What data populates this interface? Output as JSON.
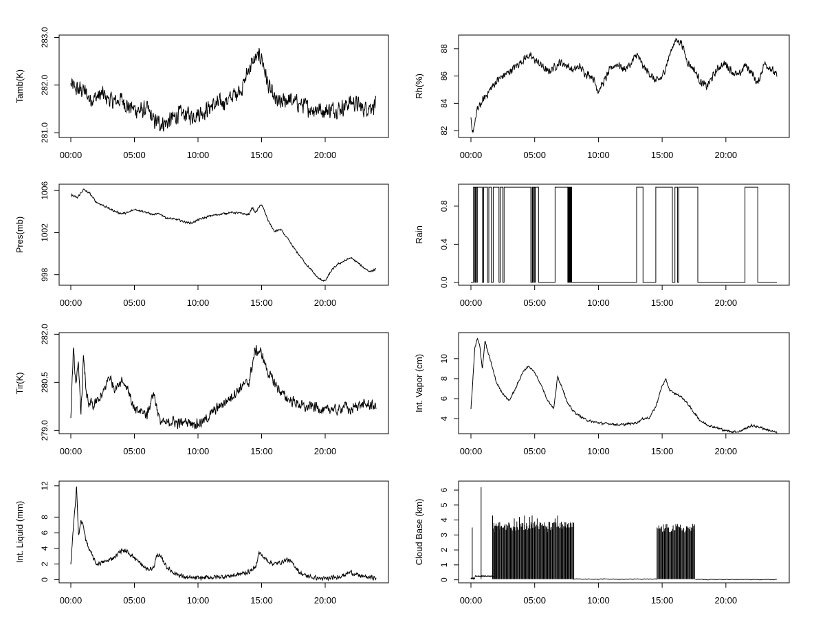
{
  "chart_data": [
    {
      "type": "line",
      "ylabel": "Tamb(K)",
      "xticks": [
        "00:00",
        "05:00",
        "10:00",
        "15:00",
        "20:00"
      ],
      "xlim": [
        0,
        24
      ],
      "ylim": [
        280.9,
        283.05
      ],
      "yticks": [
        "281.0",
        "282.0",
        "283.0"
      ],
      "series": [
        {
          "mode": "noisy",
          "noise": 0.22,
          "x": [
            0,
            0.5,
            1,
            1.5,
            2,
            2.5,
            3,
            3.5,
            4,
            4.5,
            5,
            5.5,
            6,
            6.5,
            7,
            7.5,
            8,
            8.5,
            9,
            9.5,
            10,
            10.5,
            11,
            11.5,
            12,
            12.5,
            13,
            13.5,
            14,
            14.5,
            15,
            15.5,
            16,
            16.5,
            17,
            17.5,
            18,
            18.5,
            19,
            19.5,
            20,
            20.5,
            21,
            21.5,
            22,
            22.5,
            23,
            23.5,
            24
          ],
          "y": [
            282.0,
            281.9,
            281.9,
            281.7,
            281.75,
            281.8,
            281.7,
            281.65,
            281.7,
            281.55,
            281.5,
            281.45,
            281.5,
            281.25,
            281.2,
            281.2,
            281.3,
            281.4,
            281.4,
            281.35,
            281.4,
            281.45,
            281.55,
            281.6,
            281.65,
            281.7,
            281.85,
            281.95,
            282.35,
            282.55,
            282.6,
            282.0,
            281.7,
            281.6,
            281.7,
            281.65,
            281.6,
            281.55,
            281.5,
            281.5,
            281.45,
            281.5,
            281.5,
            281.55,
            281.65,
            281.6,
            281.5,
            281.55,
            281.6
          ]
        }
      ]
    },
    {
      "type": "line",
      "ylabel": "Rh(%)",
      "xticks": [
        "00:00",
        "05:00",
        "10:00",
        "15:00",
        "20:00"
      ],
      "xlim": [
        0,
        24
      ],
      "ylim": [
        81.5,
        89
      ],
      "yticks": [
        "82",
        "84",
        "86",
        "88"
      ],
      "series": [
        {
          "mode": "noisy",
          "noise": 0.35,
          "x": [
            0,
            0.1,
            0.5,
            1,
            1.5,
            2,
            2.5,
            3,
            3.5,
            4,
            4.5,
            5,
            5.5,
            6,
            6.5,
            7,
            7.5,
            8,
            8.5,
            9,
            9.5,
            10,
            10.5,
            11,
            11.5,
            12,
            12.5,
            13,
            13.5,
            14,
            14.5,
            15,
            15.5,
            16,
            16.5,
            17,
            17.5,
            18,
            18.5,
            19,
            19.5,
            20,
            20.5,
            21,
            21.5,
            22,
            22.5,
            23,
            23.5,
            24
          ],
          "y": [
            82.8,
            81.7,
            83.5,
            84.3,
            85.0,
            85.6,
            86.0,
            86.3,
            86.7,
            87.1,
            87.5,
            87.2,
            86.8,
            86.3,
            86.6,
            87.0,
            86.8,
            86.4,
            86.7,
            86.2,
            86.0,
            84.9,
            85.7,
            86.6,
            86.9,
            86.5,
            86.8,
            87.6,
            86.7,
            86.2,
            85.6,
            85.9,
            87.3,
            88.6,
            88.5,
            87.0,
            86.5,
            85.6,
            85.2,
            86.0,
            86.7,
            86.9,
            86.3,
            86.0,
            86.8,
            86.3,
            85.4,
            86.9,
            86.6,
            86.0
          ]
        }
      ]
    },
    {
      "type": "line",
      "ylabel": "Pres(mb)",
      "xticks": [
        "00:00",
        "05:00",
        "10:00",
        "15:00",
        "20:00"
      ],
      "xlim": [
        0,
        24
      ],
      "ylim": [
        997,
        1006.6
      ],
      "yticks": [
        "998",
        "1002",
        "1006"
      ],
      "series": [
        {
          "mode": "noisy",
          "noise": 0.12,
          "x": [
            0,
            0.5,
            1,
            1.5,
            2,
            2.5,
            3,
            3.5,
            4,
            4.5,
            5,
            5.5,
            6,
            6.5,
            7,
            7.5,
            8,
            8.5,
            9,
            9.5,
            10,
            10.5,
            11,
            11.5,
            12,
            12.5,
            13,
            13.5,
            14,
            14.25,
            14.5,
            15,
            15.5,
            16,
            16.5,
            17,
            17.5,
            18,
            18.5,
            19,
            19.5,
            20,
            20.5,
            21,
            21.5,
            22,
            22.5,
            23,
            23.5,
            24
          ],
          "y": [
            1005.6,
            1005.3,
            1006.1,
            1005.7,
            1004.9,
            1004.6,
            1004.3,
            1004.0,
            1003.8,
            1003.9,
            1004.2,
            1004.1,
            1003.9,
            1003.7,
            1003.8,
            1003.4,
            1003.3,
            1003.2,
            1003.0,
            1002.9,
            1003.2,
            1003.4,
            1003.6,
            1003.7,
            1003.8,
            1003.9,
            1003.9,
            1003.8,
            1003.7,
            1004.4,
            1003.9,
            1004.7,
            1003.2,
            1002.1,
            1002.3,
            1001.5,
            1000.6,
            999.8,
            999.0,
            998.3,
            997.6,
            997.4,
            998.4,
            999.0,
            999.3,
            999.6,
            999.2,
            998.7,
            998.3,
            998.5
          ]
        }
      ]
    },
    {
      "type": "line",
      "ylabel": "Rain",
      "xticks": [
        "00:00",
        "05:00",
        "10:00",
        "15:00",
        "20:00"
      ],
      "xlim": [
        0,
        24
      ],
      "ylim": [
        -0.03,
        1.03
      ],
      "yticks": [
        "0.0",
        "0.4",
        "0.8"
      ],
      "series": [
        {
          "mode": "step",
          "intervals": [
            [
              0.2,
              0.3
            ],
            [
              0.35,
              0.45
            ],
            [
              0.5,
              0.9
            ],
            [
              1.0,
              1.3
            ],
            [
              1.4,
              1.6
            ],
            [
              1.75,
              2.2
            ],
            [
              2.3,
              2.5
            ],
            [
              2.6,
              4.7
            ],
            [
              4.8,
              4.85
            ],
            [
              4.9,
              5.0
            ],
            [
              5.05,
              5.3
            ],
            [
              6.6,
              7.6
            ],
            [
              7.65,
              7.7
            ],
            [
              7.75,
              7.8
            ],
            [
              7.85,
              7.9
            ],
            [
              13.0,
              13.5
            ],
            [
              14.5,
              15.8
            ],
            [
              16.0,
              16.2
            ],
            [
              16.3,
              17.8
            ],
            [
              21.5,
              22.5
            ]
          ]
        }
      ]
    },
    {
      "type": "line",
      "ylabel": "Tir(K)",
      "xticks": [
        "00:00",
        "05:00",
        "10:00",
        "15:00",
        "20:00"
      ],
      "xlim": [
        0,
        24
      ],
      "ylim": [
        278.9,
        282.05
      ],
      "yticks": [
        "279.0",
        "280.5",
        "282.0"
      ],
      "series": [
        {
          "mode": "noisy",
          "noise": 0.2,
          "x": [
            0,
            0.2,
            0.4,
            0.6,
            0.8,
            1.0,
            1.2,
            1.4,
            1.6,
            1.8,
            2.0,
            2.5,
            3.0,
            3.5,
            4.0,
            4.5,
            5.0,
            5.5,
            6.0,
            6.5,
            7.0,
            7.5,
            8.0,
            8.5,
            9.0,
            9.5,
            10.0,
            10.5,
            11.0,
            11.5,
            12.0,
            12.5,
            13.0,
            13.5,
            14.0,
            14.5,
            15.0,
            15.5,
            16.0,
            16.5,
            17.0,
            17.5,
            18.0,
            18.5,
            19.0,
            19.5,
            20.0,
            20.5,
            21.0,
            21.5,
            22.0,
            22.5,
            23.0,
            23.5,
            24.0
          ],
          "y": [
            279.5,
            281.5,
            280.5,
            281.0,
            279.6,
            281.3,
            280.3,
            279.7,
            279.9,
            279.7,
            279.9,
            280.1,
            280.7,
            280.3,
            280.6,
            280.3,
            279.6,
            279.6,
            279.5,
            280.2,
            279.3,
            279.2,
            279.3,
            279.2,
            279.3,
            279.25,
            279.2,
            279.3,
            279.5,
            279.7,
            279.85,
            280.0,
            280.2,
            280.4,
            280.5,
            281.5,
            281.4,
            280.8,
            280.5,
            280.2,
            280.0,
            279.9,
            279.8,
            279.7,
            279.75,
            279.7,
            279.6,
            279.7,
            279.6,
            279.8,
            279.6,
            279.8,
            279.8,
            279.8,
            279.75
          ]
        }
      ]
    },
    {
      "type": "line",
      "ylabel": "Int. Vapor (cm)",
      "xticks": [
        "00:00",
        "05:00",
        "10:00",
        "15:00",
        "20:00"
      ],
      "xlim": [
        0,
        24
      ],
      "ylim": [
        2.5,
        12.6
      ],
      "yticks": [
        "4",
        "6",
        "8",
        "10"
      ],
      "series": [
        {
          "mode": "noisy",
          "noise": 0.15,
          "x": [
            0,
            0.3,
            0.5,
            0.7,
            0.9,
            1.1,
            1.3,
            1.6,
            2.0,
            2.5,
            3.0,
            3.5,
            4.0,
            4.5,
            5.0,
            5.5,
            6.0,
            6.5,
            6.8,
            7.2,
            7.6,
            8.0,
            8.5,
            9.0,
            9.5,
            10.0,
            10.5,
            11.0,
            11.5,
            12.0,
            12.5,
            13.0,
            13.5,
            14.0,
            14.5,
            15.0,
            15.3,
            15.6,
            16.0,
            16.5,
            17.0,
            17.5,
            18.0,
            18.5,
            19.0,
            19.5,
            20.0,
            20.5,
            21.0,
            21.5,
            22.0,
            22.5,
            23.0,
            23.5,
            24.0
          ],
          "y": [
            4.9,
            11.0,
            12.0,
            11.2,
            9.0,
            11.8,
            10.8,
            9.5,
            7.6,
            6.5,
            5.8,
            7.0,
            8.5,
            9.3,
            8.6,
            7.4,
            5.9,
            5.0,
            8.2,
            7.0,
            5.5,
            4.8,
            4.3,
            3.9,
            3.7,
            3.6,
            3.5,
            3.5,
            3.4,
            3.4,
            3.5,
            3.6,
            4.0,
            4.1,
            5.2,
            7.3,
            7.9,
            6.8,
            6.5,
            6.2,
            5.5,
            4.6,
            3.8,
            3.4,
            3.2,
            3.0,
            2.8,
            2.7,
            2.7,
            3.0,
            3.3,
            3.2,
            3.0,
            2.8,
            2.6
          ]
        }
      ]
    },
    {
      "type": "line",
      "ylabel": "Int. Liquid (mm)",
      "xticks": [
        "00:00",
        "05:00",
        "10:00",
        "15:00",
        "20:00"
      ],
      "xlim": [
        0,
        24
      ],
      "ylim": [
        -0.4,
        12.6
      ],
      "yticks": [
        "0",
        "2",
        "4",
        "6",
        "8",
        "12"
      ],
      "series": [
        {
          "mode": "noisy",
          "noise": 0.35,
          "x": [
            0,
            0.15,
            0.3,
            0.45,
            0.6,
            0.8,
            1.0,
            1.2,
            1.4,
            1.7,
            2.0,
            2.5,
            3.0,
            3.5,
            4.0,
            4.5,
            5.0,
            5.5,
            6.0,
            6.5,
            6.8,
            7.2,
            7.6,
            8.0,
            8.5,
            9.0,
            9.5,
            10.0,
            11.0,
            12.0,
            13.0,
            14.0,
            14.5,
            14.8,
            15.2,
            15.6,
            16.0,
            16.5,
            17.0,
            17.5,
            18.0,
            18.5,
            19.0,
            19.5,
            20.0,
            20.5,
            21.0,
            21.5,
            22.0,
            22.5,
            23.0,
            23.5,
            24.0
          ],
          "y": [
            2.0,
            5.5,
            8.5,
            12.2,
            5.5,
            7.5,
            6.8,
            5.0,
            4.0,
            3.0,
            2.0,
            2.2,
            2.5,
            3.0,
            3.8,
            3.5,
            2.8,
            2.0,
            1.3,
            1.5,
            3.3,
            2.6,
            1.5,
            1.0,
            0.6,
            0.3,
            0.2,
            0.2,
            0.3,
            0.4,
            0.6,
            1.0,
            1.5,
            3.5,
            2.8,
            2.3,
            2.0,
            2.2,
            2.6,
            2.0,
            0.9,
            0.5,
            0.3,
            0.2,
            0.1,
            0.2,
            0.4,
            0.6,
            1.0,
            0.6,
            0.4,
            0.3,
            0.2
          ]
        }
      ]
    },
    {
      "type": "line",
      "ylabel": "Cloud Base (km)",
      "xticks": [
        "00:00",
        "05:00",
        "10:00",
        "15:00",
        "20:00"
      ],
      "xlim": [
        0,
        24
      ],
      "ylim": [
        -0.2,
        6.6
      ],
      "yticks": [
        "0",
        "1",
        "2",
        "3",
        "4",
        "5",
        "6"
      ],
      "series": [
        {
          "mode": "spikes",
          "base": 0.1,
          "low_segments": [
            [
              0,
              0.3,
              0.1
            ],
            [
              0.3,
              1.8,
              0.25
            ],
            [
              8.0,
              14.6,
              0.05
            ],
            [
              17.6,
              24.0,
              0.02
            ]
          ],
          "spikes": [
            [
              0.1,
              3.5
            ],
            [
              0.8,
              6.2
            ],
            [
              1.7,
              4.3
            ],
            [
              1.8,
              3.8
            ],
            [
              1.9,
              3.2
            ],
            [
              2.0,
              3.6
            ],
            [
              2.2,
              3.4
            ],
            [
              2.4,
              3.6
            ],
            [
              2.6,
              3.5
            ],
            [
              2.8,
              3.7
            ],
            [
              3.0,
              3.8
            ],
            [
              3.2,
              3.5
            ],
            [
              3.4,
              4.1
            ],
            [
              3.6,
              3.9
            ],
            [
              3.8,
              4.2
            ],
            [
              4.0,
              3.8
            ],
            [
              4.2,
              4.3
            ],
            [
              4.4,
              3.6
            ],
            [
              4.6,
              4.2
            ],
            [
              4.8,
              4.3
            ],
            [
              5.0,
              3.9
            ],
            [
              5.2,
              4.1
            ],
            [
              5.4,
              3.7
            ],
            [
              5.6,
              3.6
            ],
            [
              5.8,
              3.4
            ],
            [
              6.0,
              3.2
            ],
            [
              6.2,
              3.5
            ],
            [
              6.4,
              3.8
            ],
            [
              6.6,
              4.1
            ],
            [
              6.8,
              4.3
            ],
            [
              7.0,
              3.8
            ],
            [
              7.2,
              3.7
            ],
            [
              7.4,
              3.6
            ],
            [
              7.6,
              3.5
            ],
            [
              7.8,
              3.5
            ],
            [
              8.0,
              3.4
            ],
            [
              14.6,
              3.5
            ],
            [
              14.9,
              3.5
            ],
            [
              15.2,
              3.4
            ],
            [
              15.5,
              3.5
            ],
            [
              15.8,
              3.4
            ],
            [
              16.1,
              3.5
            ],
            [
              16.4,
              3.5
            ],
            [
              16.7,
              3.4
            ],
            [
              17.0,
              3.5
            ],
            [
              17.3,
              3.5
            ],
            [
              17.5,
              3.4
            ]
          ]
        }
      ]
    }
  ]
}
